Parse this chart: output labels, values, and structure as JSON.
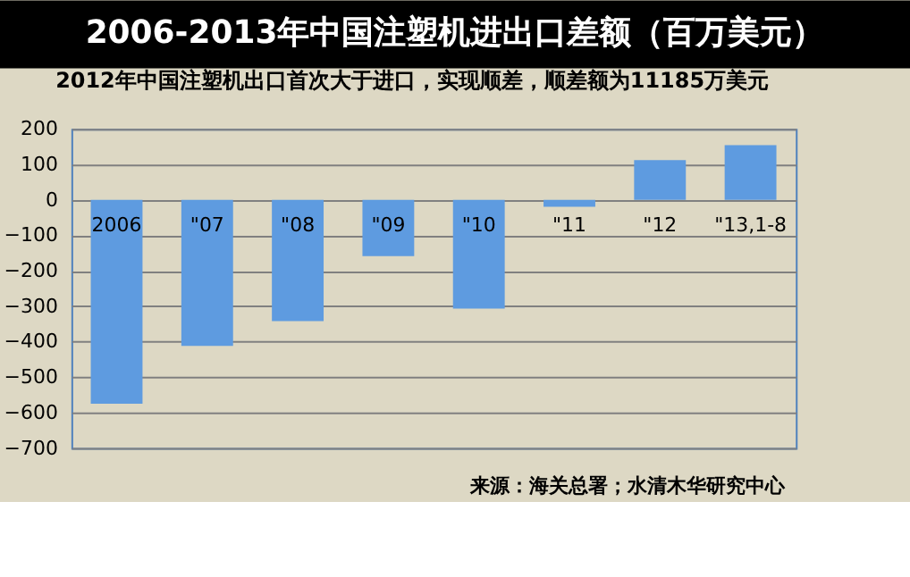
{
  "chart_data": {
    "type": "bar",
    "title": "2006-2013年中国注塑机进出口差额（百万美元）",
    "subtitle": "2012年中国注塑机出口首次大于进口，实现顺差，顺差额为11185万美元",
    "categories": [
      "2006",
      "\"07",
      "\"08",
      "\"09",
      "\"10",
      "\"11",
      "\"12",
      "\"13,1-8"
    ],
    "values": [
      -575,
      -412,
      -342,
      -159,
      -307,
      -20,
      112,
      154
    ],
    "color": "#5e9be0",
    "ylim": [
      -700,
      200
    ],
    "yticks": [
      -700,
      -600,
      -500,
      -400,
      -300,
      -200,
      -100,
      0,
      100,
      200
    ],
    "grid": "y",
    "annotations": [
      "来源：海关总署；水清木华研究中心"
    ]
  }
}
